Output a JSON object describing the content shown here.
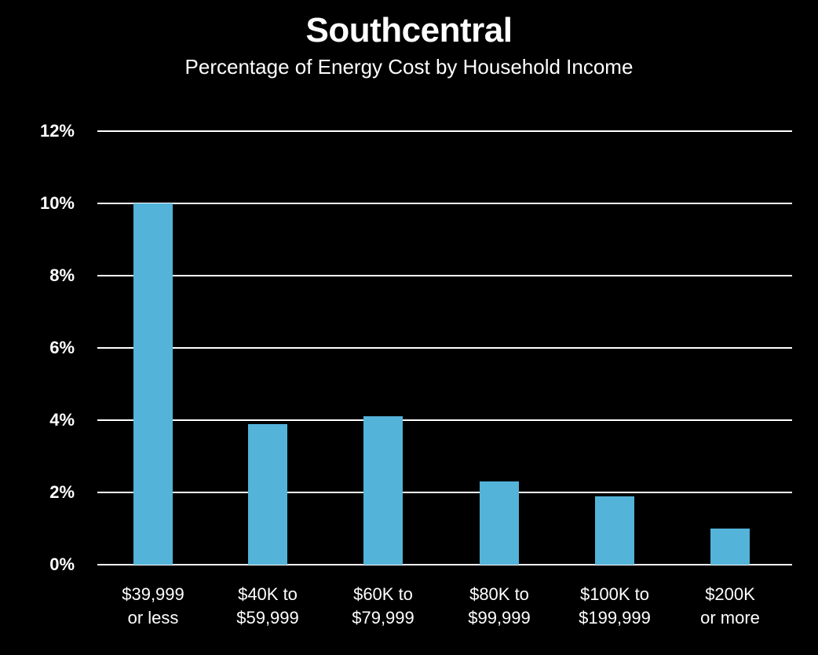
{
  "chart_data": {
    "type": "bar",
    "title": "Southcentral",
    "subtitle": "Percentage of Energy Cost by Household Income",
    "categories": [
      "$39,999 or less",
      "$40K to $59,999",
      "$60K to $79,999",
      "$80K to $99,999",
      "$100K to $199,999",
      "$200K or more"
    ],
    "category_lines": [
      [
        "$39,999",
        "or less"
      ],
      [
        "$40K to",
        "$59,999"
      ],
      [
        "$60K to",
        "$79,999"
      ],
      [
        "$80K to",
        "$99,999"
      ],
      [
        "$100K to",
        "$199,999"
      ],
      [
        "$200K",
        "or more"
      ]
    ],
    "values": [
      10.0,
      3.9,
      4.1,
      2.3,
      1.9,
      1.0
    ],
    "xlabel": "",
    "ylabel": "",
    "ylim": [
      0,
      12
    ],
    "yticks": [
      "0%",
      "2%",
      "4%",
      "6%",
      "8%",
      "10%",
      "12%"
    ],
    "grid": true,
    "legend": null,
    "bar_color": "#53b3d9",
    "background": "#000000"
  }
}
